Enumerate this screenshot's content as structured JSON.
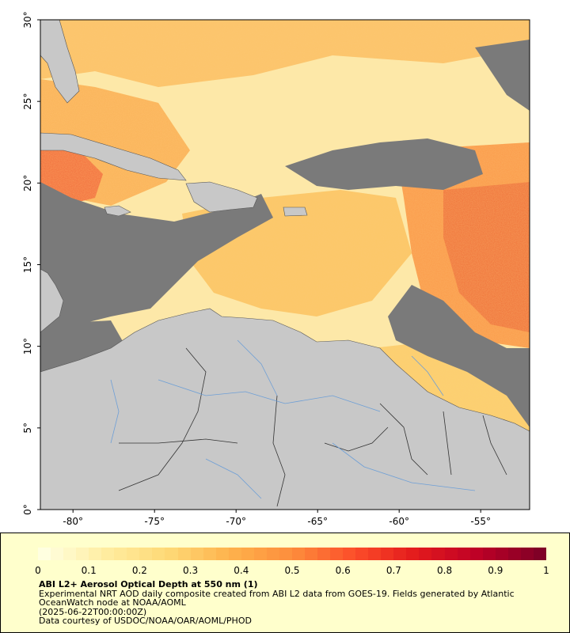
{
  "map": {
    "lat_min": 0,
    "lat_max": 30,
    "lon_min": -82,
    "lon_max": -52,
    "lat_ticks": [
      {
        "value": 0,
        "label": "0°"
      },
      {
        "value": 5,
        "label": "5°"
      },
      {
        "value": 10,
        "label": "10°"
      },
      {
        "value": 15,
        "label": "15°"
      },
      {
        "value": 20,
        "label": "20°"
      },
      {
        "value": 25,
        "label": "25°"
      },
      {
        "value": 30,
        "label": "30°"
      }
    ],
    "lon_ticks": [
      {
        "value": -80,
        "label": "-80°"
      },
      {
        "value": -75,
        "label": "-75°"
      },
      {
        "value": -70,
        "label": "-70°"
      },
      {
        "value": -65,
        "label": "-65°"
      },
      {
        "value": -60,
        "label": "-60°"
      },
      {
        "value": -55,
        "label": "-55°"
      }
    ],
    "colors": {
      "land": "#c8c8c8",
      "no_data": "#7a7a7a",
      "border": "#333333",
      "river": "#6e9fd6"
    }
  },
  "legend": {
    "title": "ABI L2+ Aerosol Optical Depth at 550 nm (1)",
    "description": "Experimental NRT AOD daily composite created from ABI L2 data from GOES-19. Fields generated by Atlantic OceanWatch node at NOAA/AOML",
    "timestamp": "(2025-06-22T00:00:00Z)",
    "credit": "Data courtesy of USDOC/NOAA/OAR/AOML/PHOD",
    "colorbar_min": 0,
    "colorbar_max": 1,
    "colorbar_ticks": [
      "0",
      "0.1",
      "0.2",
      "0.3",
      "0.4",
      "0.5",
      "0.6",
      "0.7",
      "0.8",
      "0.9",
      "1"
    ],
    "colorbar_colors": [
      "#ffffe0",
      "#ffeda0",
      "#fed976",
      "#feb24c",
      "#fd8d3c",
      "#fc4e2a",
      "#e31a1c",
      "#bd0026",
      "#800026"
    ]
  }
}
